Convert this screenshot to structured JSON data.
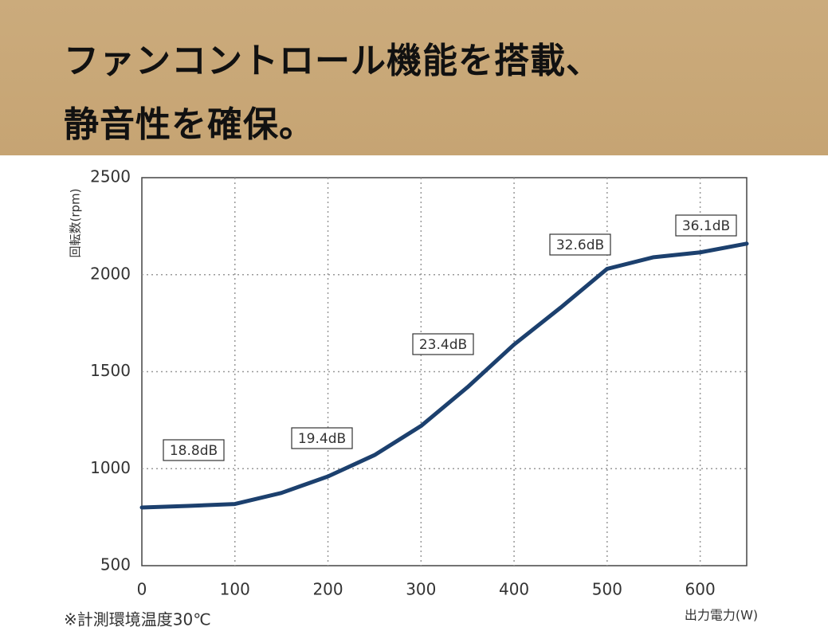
{
  "header": {
    "lines": [
      "ファンコントロール機能を搭載、",
      "静音性を確保。"
    ]
  },
  "chart_data": {
    "type": "line",
    "y_label": "回転数(rpm)",
    "x_label": "出力電力(W)",
    "note": "※計測環境温度30℃",
    "x": [
      0,
      50,
      100,
      150,
      200,
      250,
      300,
      350,
      400,
      450,
      500,
      550,
      600,
      650
    ],
    "series": [
      {
        "color": "#1c406e",
        "values": [
          800,
          808,
          818,
          875,
          960,
          1070,
          1220,
          1420,
          1640,
          1830,
          2030,
          2090,
          2115,
          2160
        ]
      }
    ],
    "xlim": [
      0,
      650
    ],
    "ylim": [
      500,
      2500
    ],
    "xticks": [
      0,
      100,
      200,
      300,
      400,
      500,
      600
    ],
    "yticks": [
      500,
      1000,
      1500,
      2000,
      2500
    ],
    "grid": true,
    "annotations": [
      "18.8dB",
      "19.4dB",
      "23.4dB",
      "32.6dB",
      "36.1dB"
    ]
  }
}
